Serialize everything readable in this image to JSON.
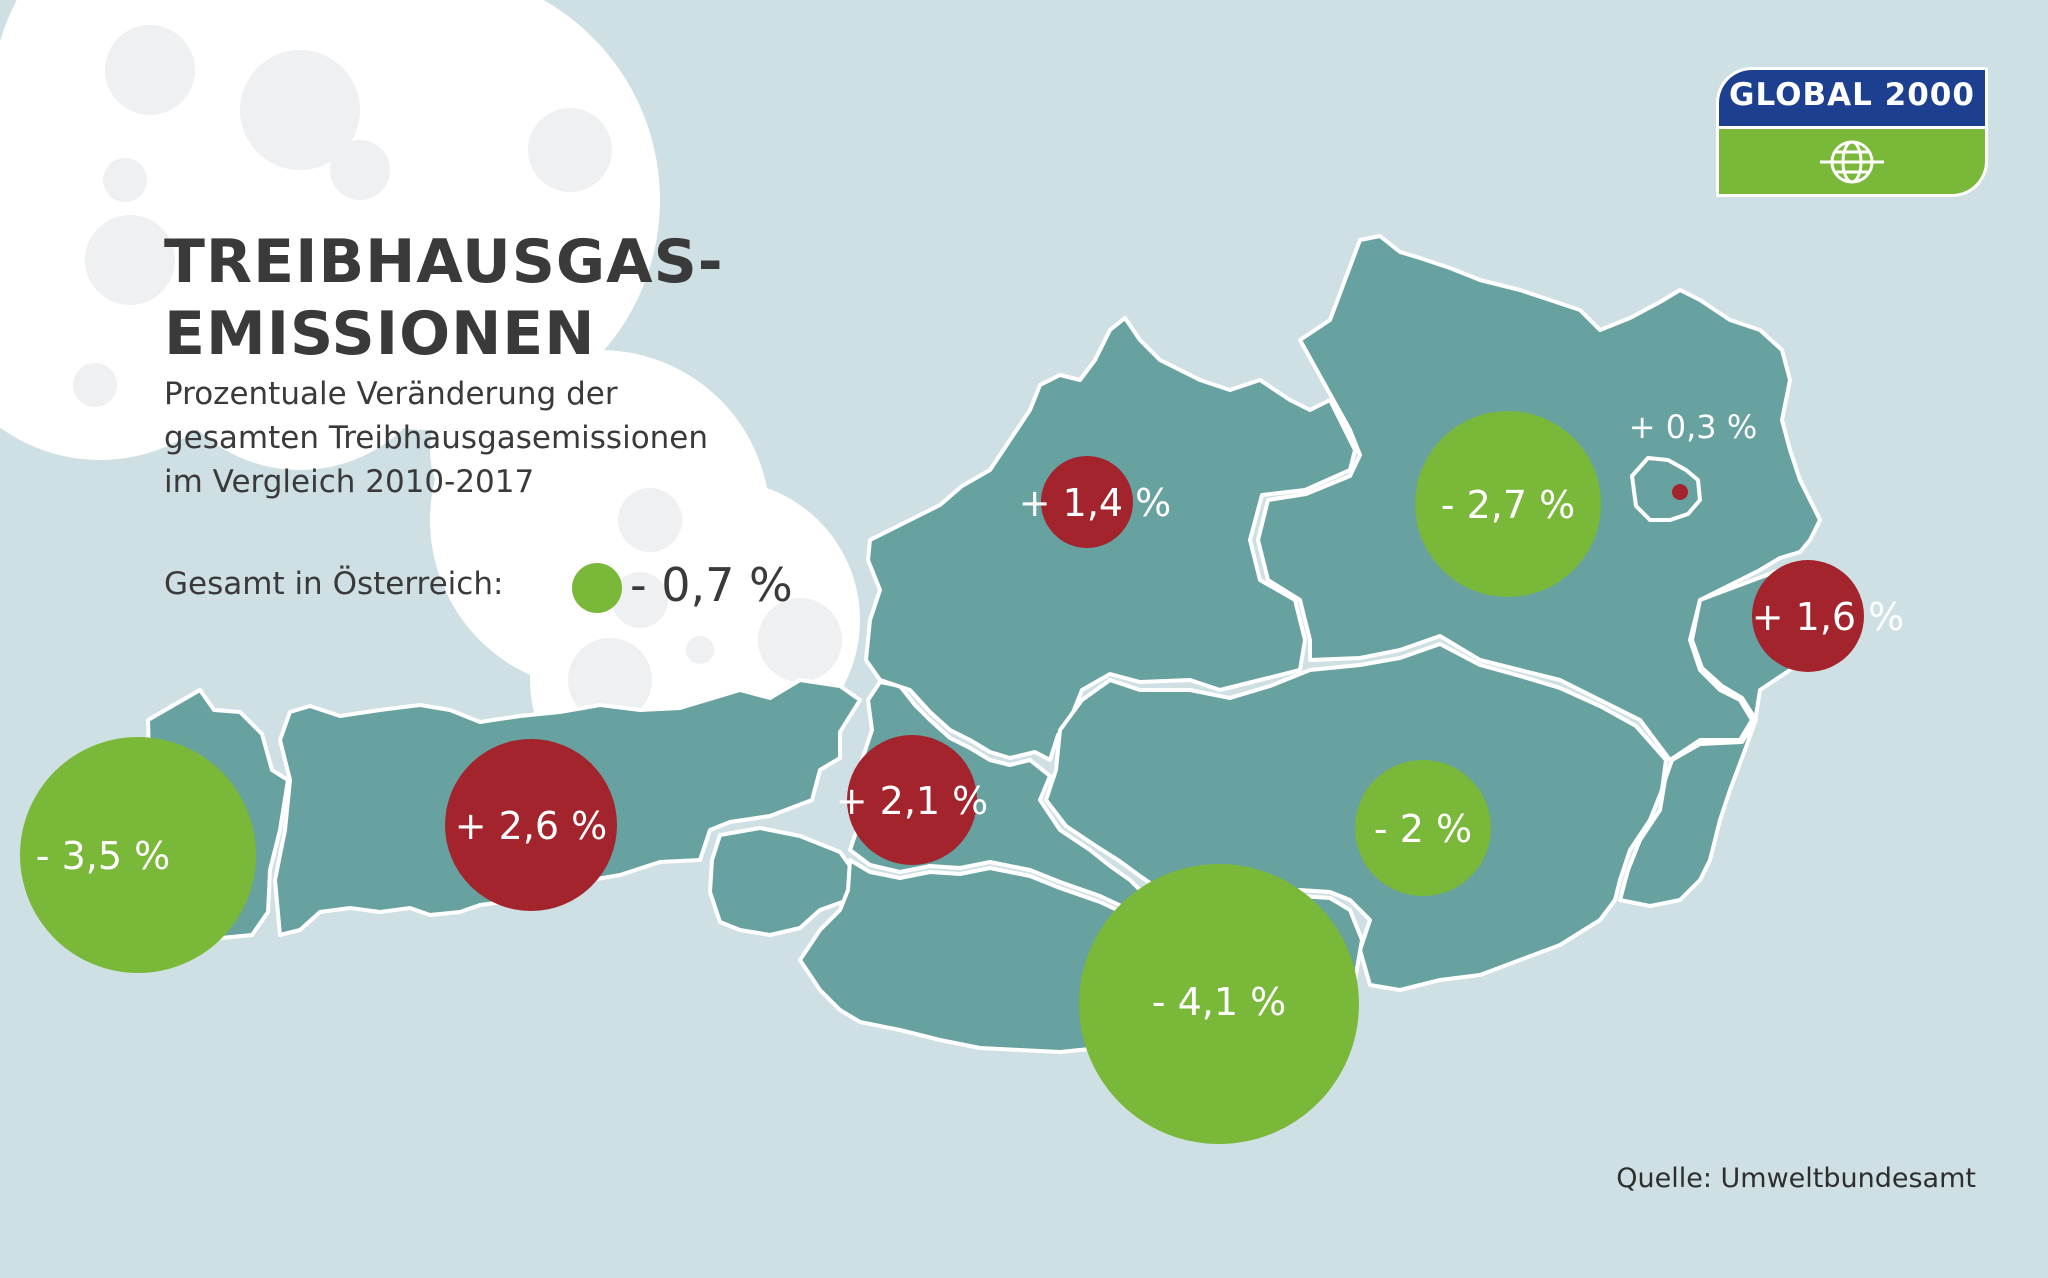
{
  "title": {
    "line1": "TREIBHAUSGAS-",
    "line2": "EMISSIONEN"
  },
  "subtitle": {
    "line1": "Prozentuale Veränderung der",
    "line2": "gesamten Treibhausgasemissionen",
    "line3": "im Vergleich 2010-2017"
  },
  "total": {
    "label": "Gesamt in Österreich:",
    "value": "- 0,7 %",
    "trend": "decrease"
  },
  "source": "Quelle: Umweltbundesamt",
  "logo": {
    "text": "GLOBAL 2000"
  },
  "colors": {
    "decrease": "#7ab83a",
    "increase": "#a3242c",
    "map_fill": "#67a1a0",
    "background": "#cfe0e4",
    "logo_blue": "#1d3f8f",
    "logo_green": "#7ab83a"
  },
  "regions": [
    {
      "value": "- 3,5 %",
      "change": -3.5,
      "trend": "decrease"
    },
    {
      "value": "+ 2,6 %",
      "change": 2.6,
      "trend": "increase"
    },
    {
      "value": "+ 2,1 %",
      "change": 2.1,
      "trend": "increase"
    },
    {
      "value": "+ 1,4 %",
      "change": 1.4,
      "trend": "increase"
    },
    {
      "value": "- 2,7 %",
      "change": -2.7,
      "trend": "decrease"
    },
    {
      "value": "+ 0,3 %",
      "change": 0.3,
      "trend": "increase"
    },
    {
      "value": "+ 1,6 %",
      "change": 1.6,
      "trend": "increase"
    },
    {
      "value": "- 2 %",
      "change": -2.0,
      "trend": "decrease"
    },
    {
      "value": "- 4,1 %",
      "change": -4.1,
      "trend": "decrease"
    }
  ]
}
